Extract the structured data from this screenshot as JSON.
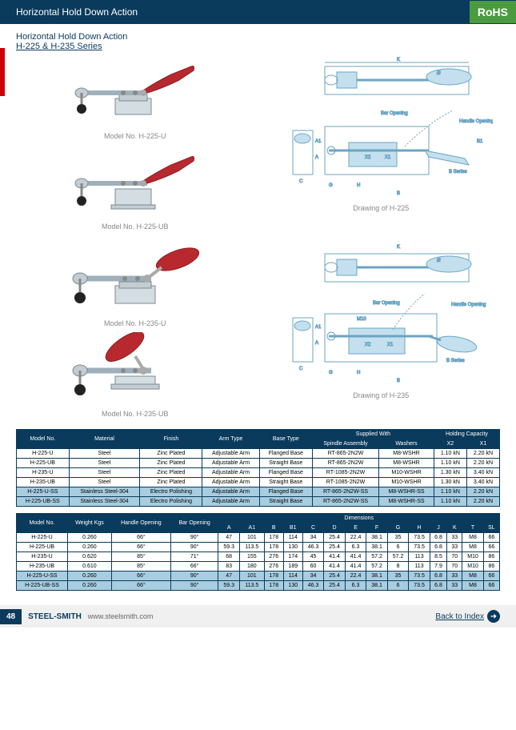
{
  "header": {
    "title": "Horizontal Hold Down Action",
    "badge": "RoHS"
  },
  "subtitle": {
    "line1": "Horizontal Hold Down Action",
    "series": "H-225 & H-235 Series"
  },
  "products": [
    {
      "label": "Model No. H-225-U",
      "handle_color": "#b8282f"
    },
    {
      "label": "Model No. H-225-UB",
      "handle_color": "#b8282f"
    },
    {
      "label": "Model No. H-235-U",
      "handle_color": "#b8282f"
    },
    {
      "label": "Model No. H-235-UB",
      "handle_color": "#b8282f"
    }
  ],
  "drawings": [
    {
      "label": "Drawing of H-225"
    },
    {
      "label": "Drawing of H-235"
    }
  ],
  "table1": {
    "headers_top": [
      "Model No.",
      "Material",
      "Finish",
      "Arm Type",
      "Base Type",
      "Supplied With",
      "Holding Capacity"
    ],
    "headers_sub": [
      "Spindle Assembly",
      "Washers",
      "X2",
      "X1"
    ],
    "rows": [
      [
        "H-225-U",
        "Steel",
        "Zinc Plated",
        "Adjustable Arm",
        "Flanged Base",
        "RT-865-2N2W",
        "M8-WSHR",
        "1.10 kN",
        "2.20 kN"
      ],
      [
        "H-225-UB",
        "Steel",
        "Zinc Plated",
        "Adjustable Arm",
        "Straight Base",
        "RT-865-2N2W",
        "M8-WSHR",
        "1.10 kN",
        "2.20 kN"
      ],
      [
        "H-235-U",
        "Steel",
        "Zinc Plated",
        "Adjustable Arm",
        "Flanged Base",
        "RT-1085-2N2W",
        "M10-WSHR",
        "1.30 kN",
        "3.40 kN"
      ],
      [
        "H-235-UB",
        "Steel",
        "Zinc Plated",
        "Adjustable Arm",
        "Straight Base",
        "RT-1085-2N2W",
        "M10-WSHR",
        "1.30 kN",
        "3.40 kN"
      ],
      [
        "H-225-U-SS",
        "Stainless Steel-304",
        "Electro Polishing",
        "Adjustable Arm",
        "Flanged Base",
        "RT-865-2N2W-SS",
        "M8-WSHR-SS",
        "1.10 kN",
        "2.20 kN"
      ],
      [
        "H-225-UB-SS",
        "Stainless Steel-304",
        "Electro Polishing",
        "Adjustable Arm",
        "Straight Base",
        "RT-865-2N2W-SS",
        "M8-WSHR-SS",
        "1.10 kN",
        "2.20 kN"
      ]
    ],
    "ss_row_indices": [
      4,
      5
    ]
  },
  "table2": {
    "headers_top": [
      "Model No.",
      "Weight Kgs",
      "Handle Opening",
      "Bar Opening",
      "Dimensions"
    ],
    "dim_cols": [
      "A",
      "A1",
      "B",
      "B1",
      "C",
      "D",
      "E",
      "F",
      "G",
      "H",
      "J",
      "K",
      "T",
      "SL"
    ],
    "rows": [
      [
        "H-225-U",
        "0.260",
        "66°",
        "90°",
        "47",
        "101",
        "178",
        "114",
        "34",
        "25.4",
        "22.4",
        "38.1",
        "35",
        "73.5",
        "6.8",
        "33",
        "M8",
        "66"
      ],
      [
        "H-225-UB",
        "0.260",
        "66°",
        "90°",
        "59.3",
        "113.5",
        "178",
        "130",
        "46.3",
        "25.4",
        "6.3",
        "38.1",
        "6",
        "73.5",
        "6.8",
        "33",
        "M8",
        "66"
      ],
      [
        "H-235-U",
        "0.620",
        "85°",
        "71°",
        "68",
        "155",
        "276",
        "174",
        "45",
        "41.4",
        "41.4",
        "57.2",
        "57.2",
        "113",
        "8.5",
        "70",
        "M10",
        "86"
      ],
      [
        "H-235-UB",
        "0.610",
        "85°",
        "66°",
        "83",
        "180",
        "276",
        "189",
        "60",
        "41.4",
        "41.4",
        "57.2",
        "8",
        "113",
        "7.9",
        "70",
        "M10",
        "86"
      ],
      [
        "H-225-U-SS",
        "0.260",
        "66°",
        "90°",
        "47",
        "101",
        "178",
        "114",
        "34",
        "25.4",
        "22.4",
        "38.1",
        "35",
        "73.5",
        "6.8",
        "33",
        "M8",
        "66"
      ],
      [
        "H-225-UB-SS",
        "0.260",
        "66°",
        "90°",
        "59.3",
        "113.5",
        "178",
        "130",
        "46.3",
        "25.4",
        "6.3",
        "38.1",
        "6",
        "73.5",
        "6.8",
        "33",
        "M8",
        "66"
      ]
    ],
    "ss_row_indices": [
      4,
      5
    ]
  },
  "footer": {
    "page_num": "48",
    "brand": "STEEL-SMITH",
    "website": "www.steelsmith.com",
    "back_link": "Back to Index"
  },
  "colors": {
    "header_bg": "#0a3a5c",
    "rohs_bg": "#4a9b3e",
    "red_accent": "#c00000",
    "ss_row_bg": "#a8cde0",
    "clamp_body": "#d4dde2",
    "clamp_shadow": "#9fb0bb",
    "drawing_line": "#6ba5c4"
  },
  "drawing_labels": {
    "bar_opening": "Bar Opening",
    "handle_opening": "Handle Opening",
    "b_series": "B Series"
  }
}
